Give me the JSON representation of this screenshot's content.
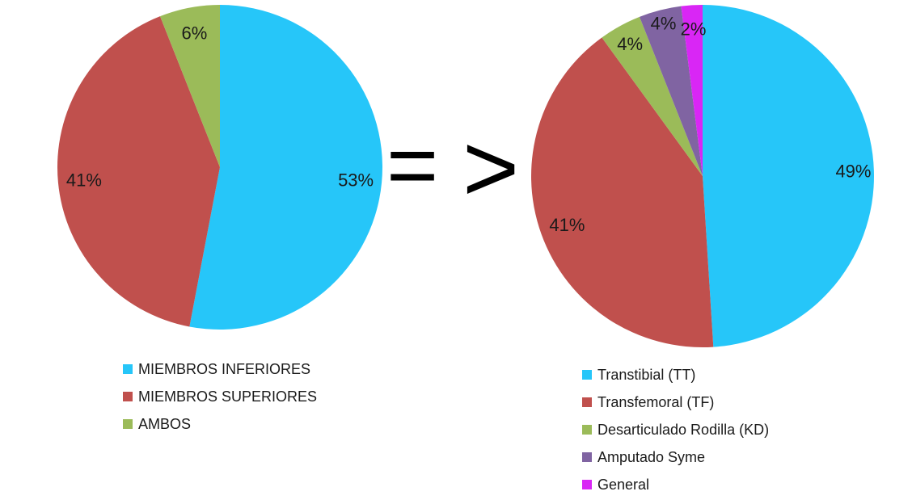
{
  "chart_data": [
    {
      "type": "pie",
      "series": [
        {
          "labels": [
            "MIEMBROS INFERIORES",
            "MIEMBROS SUPERIORES",
            "AMBOS"
          ],
          "values": [
            53,
            41,
            6
          ],
          "data_labels": [
            "53%",
            "41%",
            "6%"
          ]
        }
      ],
      "colors": [
        "#26C6F9",
        "#C0504D",
        "#9BBB59"
      ],
      "legend_position": "bottom"
    },
    {
      "type": "pie",
      "series": [
        {
          "labels": [
            "Transtibial (TT)",
            "Transfemoral (TF)",
            "Desarticulado Rodilla (KD)",
            "Amputado Syme",
            "General"
          ],
          "values": [
            49,
            41,
            4,
            4,
            2
          ],
          "data_labels": [
            "49%",
            "41%",
            "4%",
            "4%",
            "2%"
          ]
        }
      ],
      "colors": [
        "#26C6F9",
        "#C0504D",
        "#9BBB59",
        "#8064A2",
        "#D926F5"
      ],
      "legend_position": "bottom"
    }
  ],
  "operator": {
    "equals": "=",
    "greater": ">"
  }
}
